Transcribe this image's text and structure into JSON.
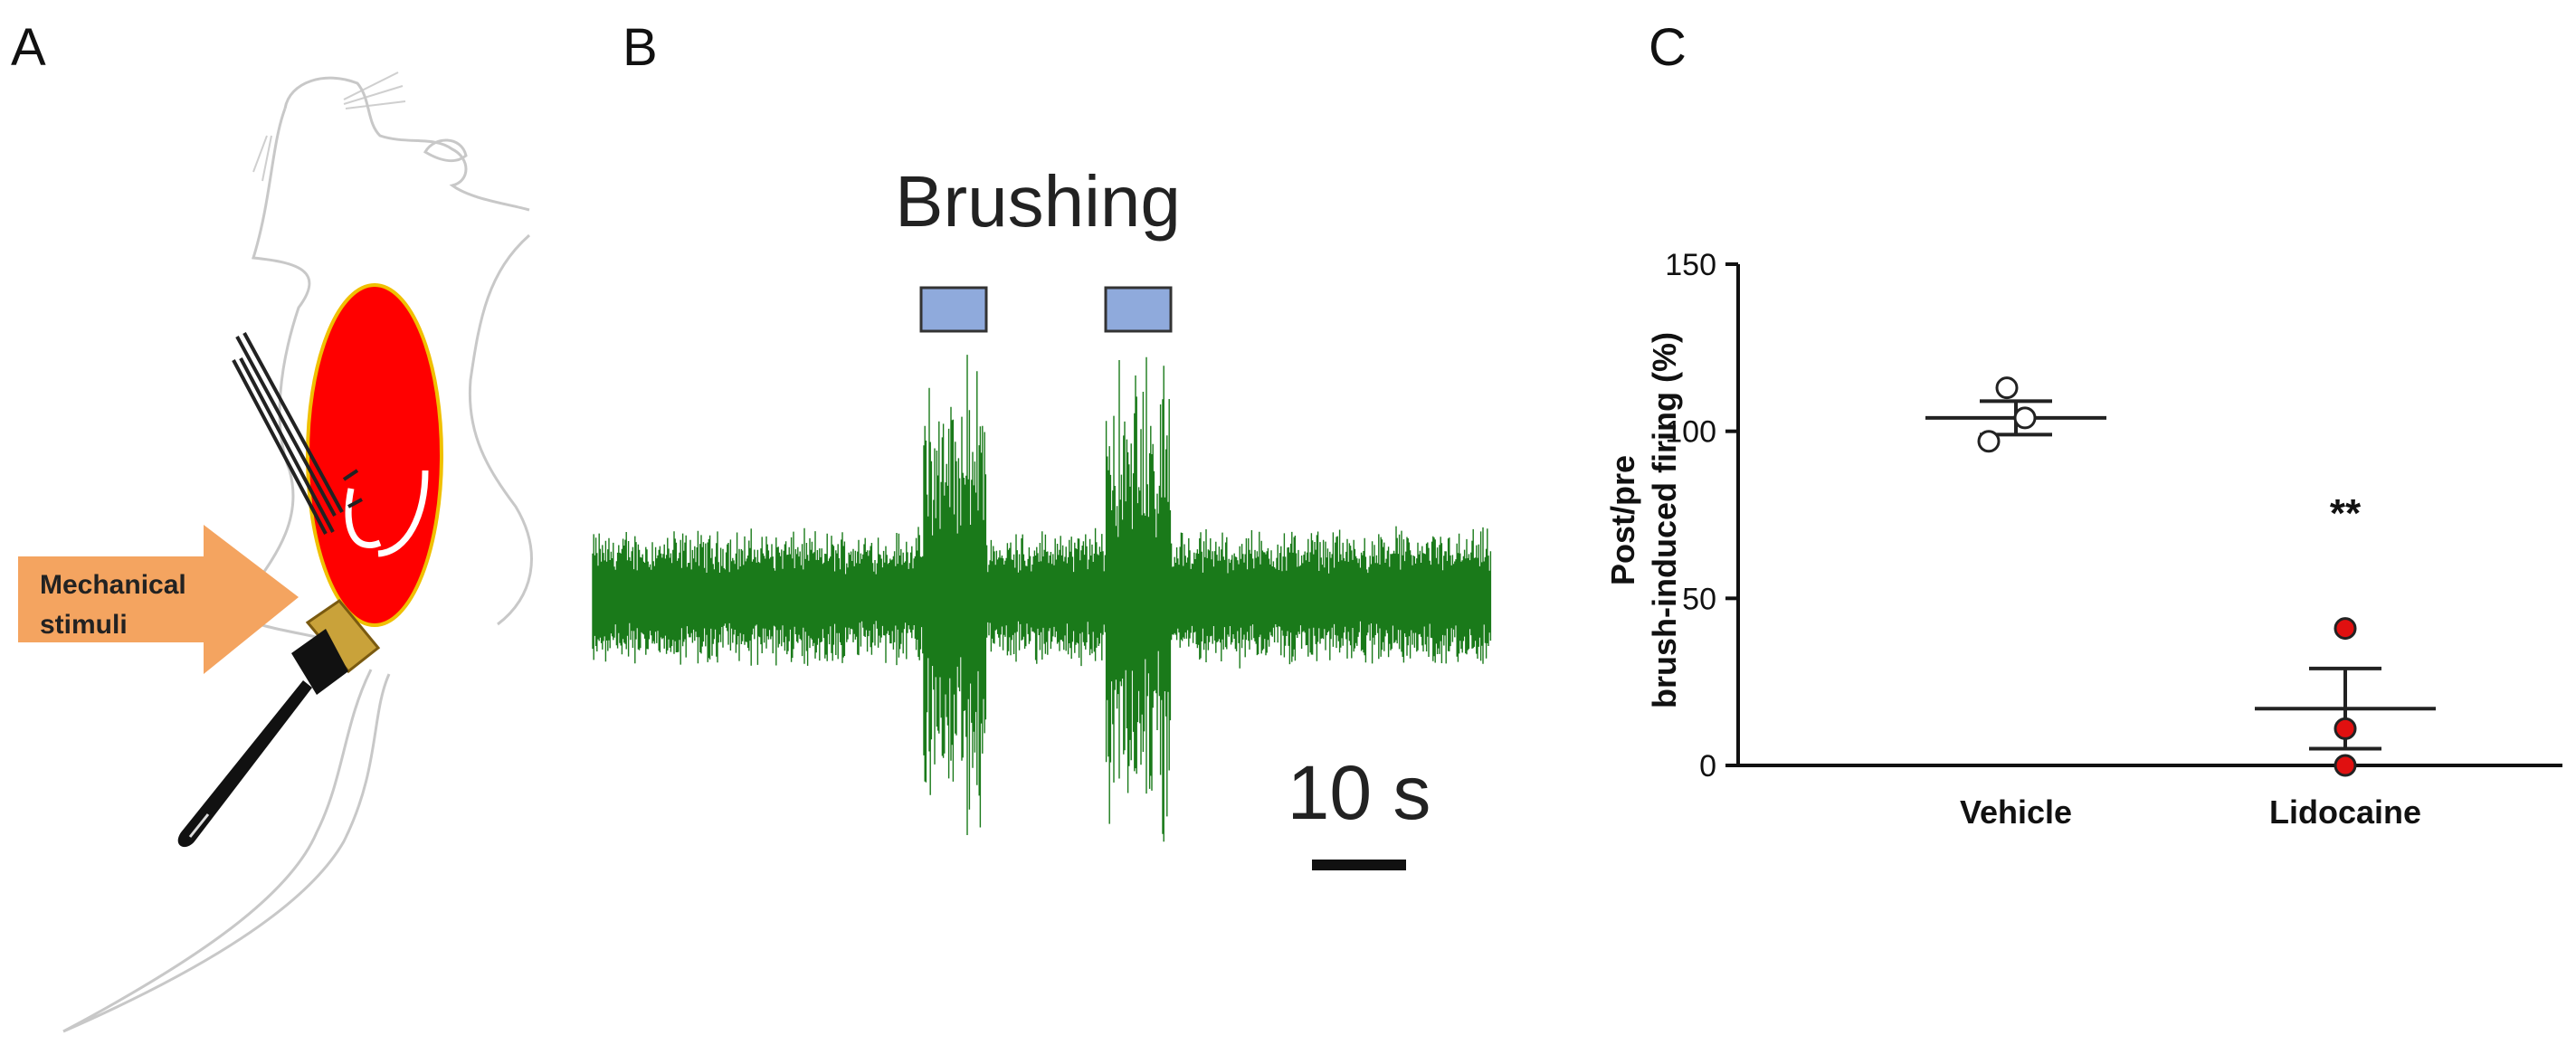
{
  "panels": {
    "a": {
      "letter": "A",
      "arrow_label_line1": "Mechanical",
      "arrow_label_line2": "stimuli"
    },
    "b": {
      "letter": "B",
      "stimulus_label": "Brushing",
      "scale_bar_label": "10 s"
    },
    "c": {
      "letter": "C"
    }
  },
  "colors": {
    "trace": "#1a7a1a",
    "brush_marker": "#8faadc",
    "arrow": "#f4a460",
    "injection_site": "#ff0000",
    "lidocaine_points": "#e01010",
    "vehicle_points": "#ffffff"
  },
  "chart_data": {
    "type": "scatter",
    "title": "",
    "xlabel": "",
    "ylabel_line1": "Post/pre",
    "ylabel_line2": "brush-induced firing (%)",
    "ylim": [
      0,
      150
    ],
    "yticks": [
      0,
      50,
      100,
      150
    ],
    "categories": [
      "Vehicle",
      "Lidocaine"
    ],
    "series": [
      {
        "category": "Vehicle",
        "points": [
          113,
          104,
          97
        ],
        "mean": 104,
        "sem": 5
      },
      {
        "category": "Lidocaine",
        "points": [
          41,
          11,
          0
        ],
        "mean": 17,
        "sem": 12
      }
    ],
    "annotation": "**",
    "grid": false
  }
}
